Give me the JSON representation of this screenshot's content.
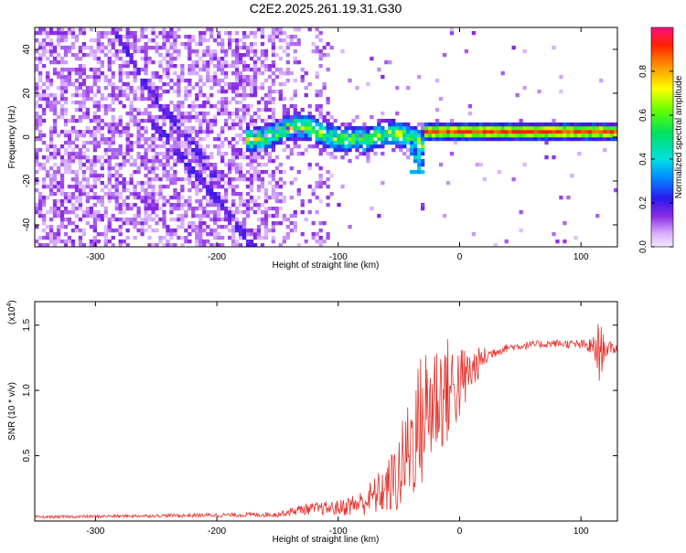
{
  "title": "C2E2.2025.261.19.31.G30",
  "colorbar": {
    "label": "Normalized spectral amplitude",
    "ticks": [
      0.0,
      0.2,
      0.4,
      0.6,
      0.8
    ],
    "tick_labels": [
      "0.0",
      "0.2",
      "0.4",
      "0.6",
      "0.8"
    ]
  },
  "chart_data": [
    {
      "type": "heatmap",
      "name": "spectrogram",
      "xlabel": "Height of straight line (km)",
      "ylabel": "Frequency (Hz)",
      "xlim": [
        -350,
        130
      ],
      "ylim": [
        -50,
        50
      ],
      "xticks": [
        -300,
        -200,
        -100,
        0,
        100
      ],
      "xtick_labels": [
        "-300",
        "-200",
        "-100",
        "0",
        "100"
      ],
      "yticks": [
        -40,
        -20,
        0,
        20,
        40
      ],
      "ytick_labels": [
        "-40",
        "-20",
        "0",
        "20",
        "40"
      ],
      "colorbar_range": [
        0,
        1
      ],
      "features": [
        {
          "name": "dispersed-track-upper",
          "x": [
            -285,
            -255,
            -230,
            -205
          ],
          "y": [
            50,
            20,
            5,
            -15
          ],
          "amplitude": 0.15
        },
        {
          "name": "dispersed-track-lower",
          "x": [
            -250,
            -220,
            -195,
            -170
          ],
          "y": [
            5,
            -15,
            -32,
            -50
          ],
          "amplitude": 0.15
        },
        {
          "name": "noisy-band",
          "x": [
            -175,
            -30
          ],
          "y_center": 2,
          "y_halfwidth": 6,
          "amplitude": 0.45
        },
        {
          "name": "steady-tone",
          "x": [
            -30,
            130
          ],
          "y_center": 2,
          "y_halfwidth": 3,
          "amplitude": 0.95
        }
      ]
    },
    {
      "type": "line",
      "name": "snr",
      "color": "#e8302a",
      "xlabel": "Height of straight line (km)",
      "ylabel": "SNR (10 * v/v)",
      "y_multiplier": "(x10",
      "y_multiplier_exp": "4",
      "y_multiplier_close": ")",
      "xlim": [
        -350,
        130
      ],
      "ylim": [
        0,
        16800
      ],
      "xticks": [
        -300,
        -200,
        -100,
        0,
        100
      ],
      "xtick_labels": [
        "-300",
        "-200",
        "-100",
        "0",
        "100"
      ],
      "yticks": [
        5000,
        10000,
        15000
      ],
      "ytick_labels": [
        "0.5",
        "1.0",
        "1.5"
      ],
      "x": [
        -350,
        -250,
        -150,
        -130,
        -100,
        -80,
        -60,
        -50,
        -40,
        -30,
        -20,
        -10,
        0,
        10,
        20,
        30,
        40,
        60,
        80,
        100,
        110,
        115,
        120,
        130
      ],
      "y": [
        300,
        400,
        500,
        900,
        1000,
        1400,
        2500,
        3500,
        6000,
        8000,
        9500,
        10000,
        10500,
        11500,
        12500,
        13000,
        13300,
        13500,
        13600,
        13500,
        13300,
        13000,
        13200,
        13200
      ],
      "noise_amplitude": [
        100,
        120,
        200,
        400,
        600,
        1000,
        2000,
        3200,
        4500,
        5500,
        5000,
        4200,
        3000,
        1800,
        800,
        400,
        300,
        300,
        300,
        350,
        800,
        2500,
        700,
        300
      ]
    }
  ]
}
